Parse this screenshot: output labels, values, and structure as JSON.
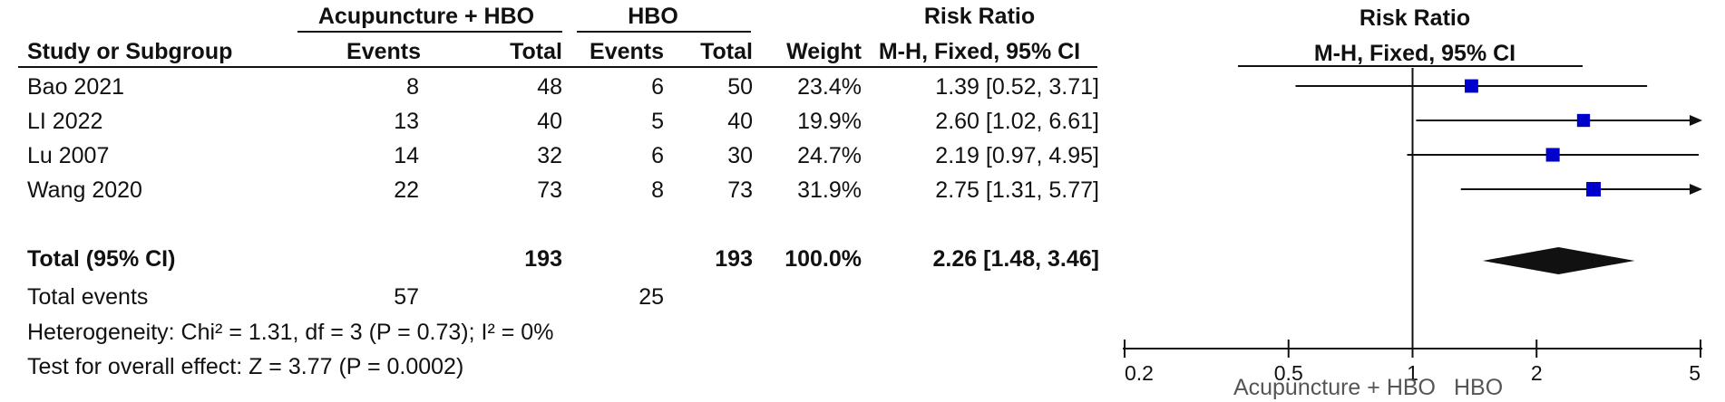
{
  "table": {
    "group1_label": "Acupuncture + HBO",
    "group2_label": "HBO",
    "columns": {
      "study": "Study or Subgroup",
      "events1": "Events",
      "total1": "Total",
      "events2": "Events",
      "total2": "Total",
      "weight": "Weight",
      "rr_title": "Risk Ratio",
      "rr_method": "M-H, Fixed, 95% CI"
    },
    "rows": [
      {
        "study": "Bao 2021",
        "events1": "8",
        "total1": "48",
        "events2": "6",
        "total2": "50",
        "weight": "23.4%",
        "ci": "1.39 [0.52, 3.71]"
      },
      {
        "study": "LI 2022",
        "events1": "13",
        "total1": "40",
        "events2": "5",
        "total2": "40",
        "weight": "19.9%",
        "ci": "2.60 [1.02, 6.61]"
      },
      {
        "study": "Lu 2007",
        "events1": "14",
        "total1": "32",
        "events2": "6",
        "total2": "30",
        "weight": "24.7%",
        "ci": "2.19 [0.97, 4.95]"
      },
      {
        "study": "Wang 2020",
        "events1": "22",
        "total1": "73",
        "events2": "8",
        "total2": "73",
        "weight": "31.9%",
        "ci": "2.75 [1.31, 5.77]"
      }
    ],
    "total": {
      "label": "Total (95% CI)",
      "total1": "193",
      "total2": "193",
      "weight": "100.0%",
      "ci": "2.26 [1.48, 3.46]"
    },
    "total_events": {
      "label": "Total events",
      "events1": "57",
      "events2": "25"
    },
    "heterogeneity": "Heterogeneity: Chi² = 1.31, df = 3 (P = 0.73); I² = 0%",
    "overall_effect": "Test for overall effect: Z = 3.77 (P = 0.0002)"
  },
  "plot": {
    "title": "Risk Ratio",
    "subtitle": "M-H, Fixed, 95% CI",
    "favours_left": "Acupuncture + HBO",
    "favours_right": "HBO"
  },
  "chart_data": {
    "type": "forest",
    "scale": "log",
    "xlim": [
      0.2,
      5
    ],
    "ticks": [
      0.2,
      0.5,
      1,
      2,
      5
    ],
    "tick_labels": [
      "0.2",
      "0.5",
      "1",
      "2",
      "5"
    ],
    "reference_line": 1,
    "marker_color": "#0000cc",
    "studies": [
      {
        "name": "Bao 2021",
        "rr": 1.39,
        "lower": 0.52,
        "upper": 3.71,
        "weight": 23.4
      },
      {
        "name": "LI 2022",
        "rr": 2.6,
        "lower": 1.02,
        "upper": 6.61,
        "weight": 19.9
      },
      {
        "name": "Lu 2007",
        "rr": 2.19,
        "lower": 0.97,
        "upper": 4.95,
        "weight": 24.7
      },
      {
        "name": "Wang 2020",
        "rr": 2.75,
        "lower": 1.31,
        "upper": 5.77,
        "weight": 31.9
      }
    ],
    "pooled": {
      "name": "Total (95% CI)",
      "rr": 2.26,
      "lower": 1.48,
      "upper": 3.46
    }
  }
}
